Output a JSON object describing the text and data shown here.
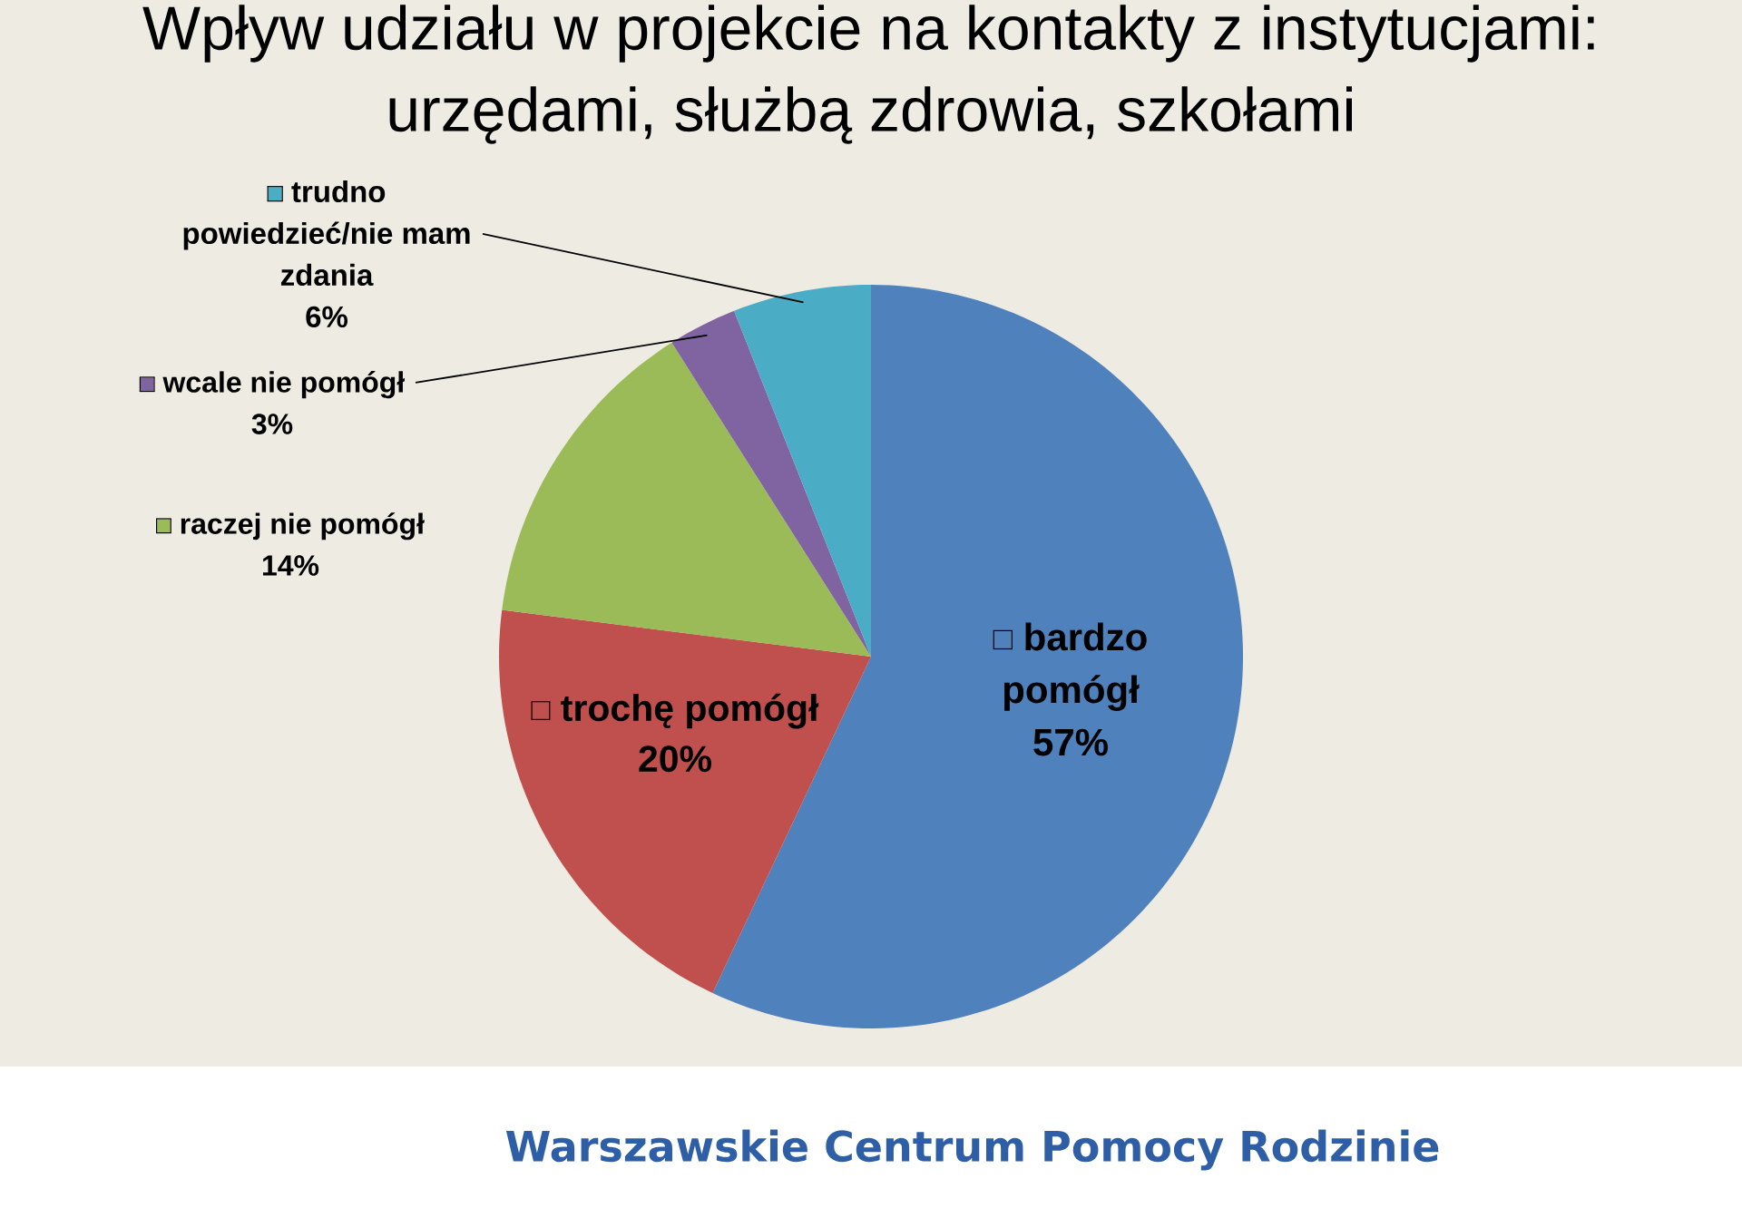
{
  "chart_data": {
    "type": "pie",
    "title": "Wpływ udziału w projekcie na kontakty z instytucjami: urzędami, służbą zdrowia, szkołami",
    "categories": [
      "bardzo pomógł",
      "trochę pomógł",
      "raczej nie pomógł",
      "wcale nie pomógł",
      "trudno powiedzieć/nie mam zdania"
    ],
    "values": [
      57,
      20,
      14,
      3,
      6
    ],
    "value_labels": [
      "57%",
      "20%",
      "14%",
      "3%",
      "6%"
    ],
    "colors": [
      "#4f81bd",
      "#c0504d",
      "#9bbb59",
      "#8064a2",
      "#4bacc6"
    ],
    "legend": "top left",
    "annotations": [
      "Warszawskie Centrum Pomocy Rodzinie"
    ]
  }
}
